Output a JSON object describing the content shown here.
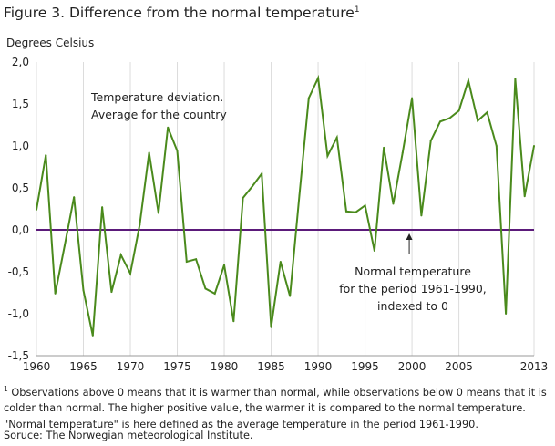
{
  "figure": {
    "title": "Figure 3. Difference from the normal temperature",
    "title_sup": "1",
    "ylabel": "Degrees  Celsius",
    "annotation_deviation": [
      "Temperature  deviation.",
      "Average  for the country"
    ],
    "annotation_normal": [
      "Normal temperature",
      "for the period 1961-1990,",
      "indexed to 0"
    ],
    "footnote_sup": "1",
    "footnote": "Observations above 0 means that it is warmer than normal, while observations below 0 means that it is colder than normal. The higher positive value, the warmer it is compared to the normal temperature. \"Normal temperature\" is here defined as the average temperature in the period 1961-1990.",
    "source": "Soruce: The Norwegian meteorological Institute."
  },
  "chart_data": {
    "type": "line",
    "x": [
      1960,
      1961,
      1962,
      1963,
      1964,
      1965,
      1966,
      1967,
      1968,
      1969,
      1970,
      1971,
      1972,
      1973,
      1974,
      1975,
      1976,
      1977,
      1978,
      1979,
      1980,
      1981,
      1982,
      1983,
      1984,
      1985,
      1986,
      1987,
      1988,
      1989,
      1990,
      1991,
      1992,
      1993,
      1994,
      1995,
      1996,
      1997,
      1998,
      1999,
      2000,
      2001,
      2002,
      2003,
      2004,
      2005,
      2006,
      2007,
      2008,
      2009,
      2010,
      2011,
      2012,
      2013
    ],
    "series": [
      {
        "color": "#4a8a1c",
        "values": [
          0.24,
          0.89,
          -0.76,
          -0.19,
          0.39,
          -0.72,
          -1.26,
          0.27,
          -0.74,
          -0.3,
          -0.52,
          0.06,
          0.92,
          0.2,
          1.22,
          0.94,
          -0.38,
          -0.35,
          -0.7,
          -0.76,
          -0.42,
          -1.09,
          0.38,
          0.52,
          0.67,
          -1.16,
          -0.38,
          -0.79,
          0.41,
          1.57,
          1.81,
          0.88,
          1.1,
          0.22,
          0.21,
          0.29,
          -0.25,
          0.98,
          0.31,
          0.92,
          1.57,
          0.17,
          1.06,
          1.29,
          1.33,
          1.42,
          1.78,
          1.3,
          1.4,
          1.0,
          -1.0,
          1.8,
          0.4,
          1.0
        ]
      }
    ],
    "reference_line": {
      "y": 0,
      "color": "#5b1a7a"
    },
    "xticks": [
      1960,
      1965,
      1970,
      1975,
      1980,
      1985,
      1990,
      1995,
      2000,
      2005,
      2013
    ],
    "xtick_labels": [
      "1960",
      "1965",
      "1970",
      "1975",
      "1980",
      "1985",
      "1990",
      "1995",
      "2000",
      "2005",
      "2013"
    ],
    "yticks": [
      2.0,
      1.5,
      1.0,
      0.5,
      0.0,
      -0.5,
      -1.0,
      -1.5
    ],
    "ytick_labels": [
      "2,0",
      "1,5",
      "1,0",
      "0,5",
      "0,0",
      "-0,5",
      "-1,0",
      "-1,5"
    ],
    "xlim": [
      1960,
      2013
    ],
    "ylim": [
      -1.5,
      2.0
    ],
    "grid": "vertical",
    "ylabel": "Degrees  Celsius"
  }
}
